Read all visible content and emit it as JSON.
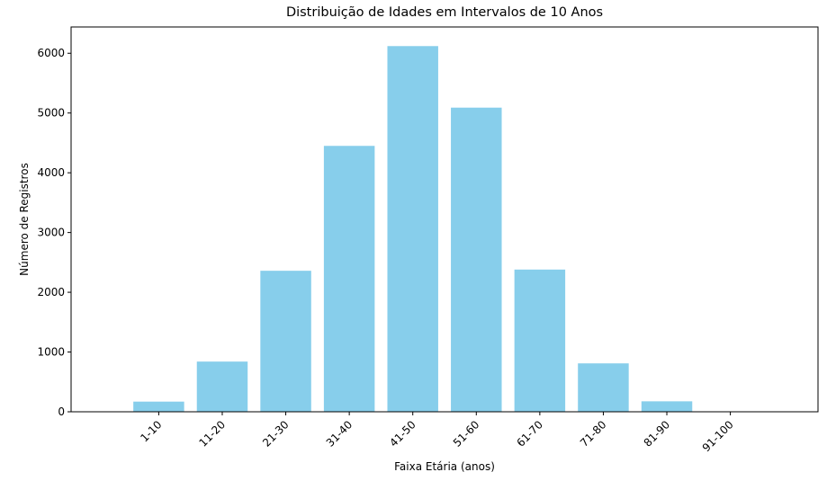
{
  "chart_data": {
    "type": "bar",
    "title": "Distribuição de Idades em Intervalos de 10 Anos",
    "xlabel": "Faixa Etária (anos)",
    "ylabel": "Número de Registros",
    "categories": [
      "1-10",
      "11-20",
      "21-30",
      "31-40",
      "41-50",
      "51-60",
      "61-70",
      "71-80",
      "81-90",
      "91-100"
    ],
    "values": [
      170,
      840,
      2360,
      4450,
      6120,
      5090,
      2380,
      810,
      175,
      5
    ],
    "ylim": [
      0,
      6440
    ],
    "yticks": [
      0,
      1000,
      2000,
      3000,
      4000,
      5000,
      6000
    ],
    "bar_color": "#87CEEB",
    "grid": false,
    "x_tick_rotation": 45
  }
}
